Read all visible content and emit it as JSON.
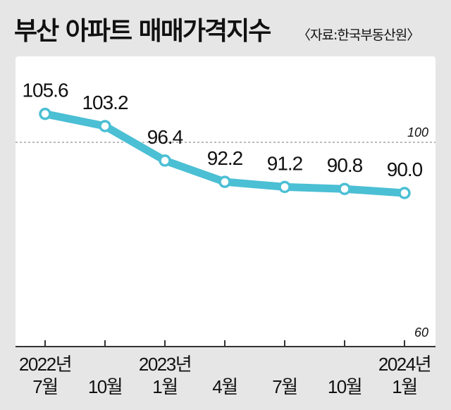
{
  "chart_data": {
    "type": "line",
    "title": "부산 아파트 매매가격지수",
    "source": "〈자료:한국부동산원〉",
    "categories": [
      "7월",
      "10월",
      "1월",
      "4월",
      "7월",
      "10월",
      "1월"
    ],
    "year_labels": [
      "2022년",
      "",
      "2023년",
      "",
      "",
      "",
      "2024년"
    ],
    "values": [
      105.6,
      103.2,
      96.4,
      92.2,
      91.2,
      90.8,
      90.0
    ],
    "value_labels": [
      "105.6",
      "103.2",
      "96.4",
      "92.2",
      "91.2",
      "90.8",
      "90.0"
    ],
    "reference_line": {
      "value": 100,
      "label": "100"
    },
    "axis_min_label": "60",
    "ylim": [
      60,
      100
    ],
    "line_color": "#4bbfd4",
    "grid": false
  }
}
